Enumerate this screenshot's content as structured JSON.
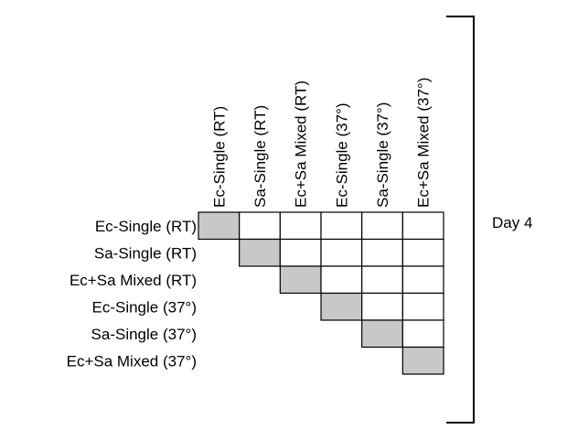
{
  "matrix": {
    "column_labels": [
      "Ec-Single (RT)",
      "Sa-Single (RT)",
      "Ec+Sa Mixed (RT)",
      "Ec-Single (37°)",
      "Sa-Single (37°)",
      "Ec+Sa Mixed  (37°)"
    ],
    "row_labels": [
      "Ec-Single (RT)",
      "Sa-Single (RT)",
      "Ec+Sa Mixed (RT)",
      "Ec-Single (37°)",
      "Sa-Single (37°)",
      "Ec+Sa Mixed  (37°)"
    ],
    "diagonal_color": "#c8c8c8",
    "empty_color": "#ffffff",
    "border_color": "#000000"
  },
  "bracket": {
    "label": "Day 4"
  }
}
